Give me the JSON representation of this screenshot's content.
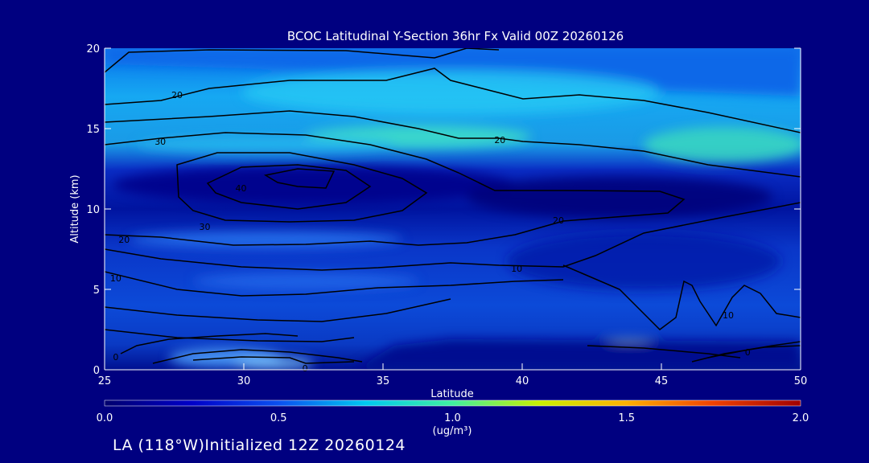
{
  "chart_data": {
    "type": "heatmap",
    "title": "BCOC Latitudinal Y-Section 36hr  Fx Valid 00Z 20260126",
    "xlabel": "Latitude",
    "ylabel": "Altitude (km)",
    "xlim": [
      25,
      50
    ],
    "ylim": [
      0,
      20
    ],
    "xticks": [
      25,
      30,
      35,
      40,
      45,
      50
    ],
    "yticks": [
      0,
      5,
      10,
      15,
      20
    ],
    "colorbar": {
      "label": "(ug/m³)",
      "range": [
        0.0,
        2.0
      ],
      "ticks": [
        "0.0",
        "0.5",
        "1.0",
        "1.5",
        "2.0"
      ],
      "colors": [
        "#00006e",
        "#0000c8",
        "#0a50f0",
        "#00c8f0",
        "#40f0a0",
        "#c8f000",
        "#ffb000",
        "#f04000",
        "#a00000"
      ]
    },
    "contour_labels": [
      {
        "lat": 27.6,
        "alt": 17.1,
        "text": "20"
      },
      {
        "lat": 27.0,
        "alt": 14.2,
        "text": "30"
      },
      {
        "lat": 29.9,
        "alt": 11.3,
        "text": "40"
      },
      {
        "lat": 28.6,
        "alt": 8.9,
        "text": "30"
      },
      {
        "lat": 25.7,
        "alt": 8.1,
        "text": "20"
      },
      {
        "lat": 25.4,
        "alt": 5.7,
        "text": "10"
      },
      {
        "lat": 25.4,
        "alt": 0.8,
        "text": "0"
      },
      {
        "lat": 32.2,
        "alt": 0.1,
        "text": "0"
      },
      {
        "lat": 39.2,
        "alt": 14.3,
        "text": "20"
      },
      {
        "lat": 41.3,
        "alt": 9.3,
        "text": "20"
      },
      {
        "lat": 39.8,
        "alt": 6.3,
        "text": "10"
      },
      {
        "lat": 47.4,
        "alt": 3.4,
        "text": "10"
      },
      {
        "lat": 48.1,
        "alt": 1.1,
        "text": "0"
      }
    ]
  },
  "footer": {
    "location_text": "LA (118°W)Initialized 12Z 20260124"
  }
}
